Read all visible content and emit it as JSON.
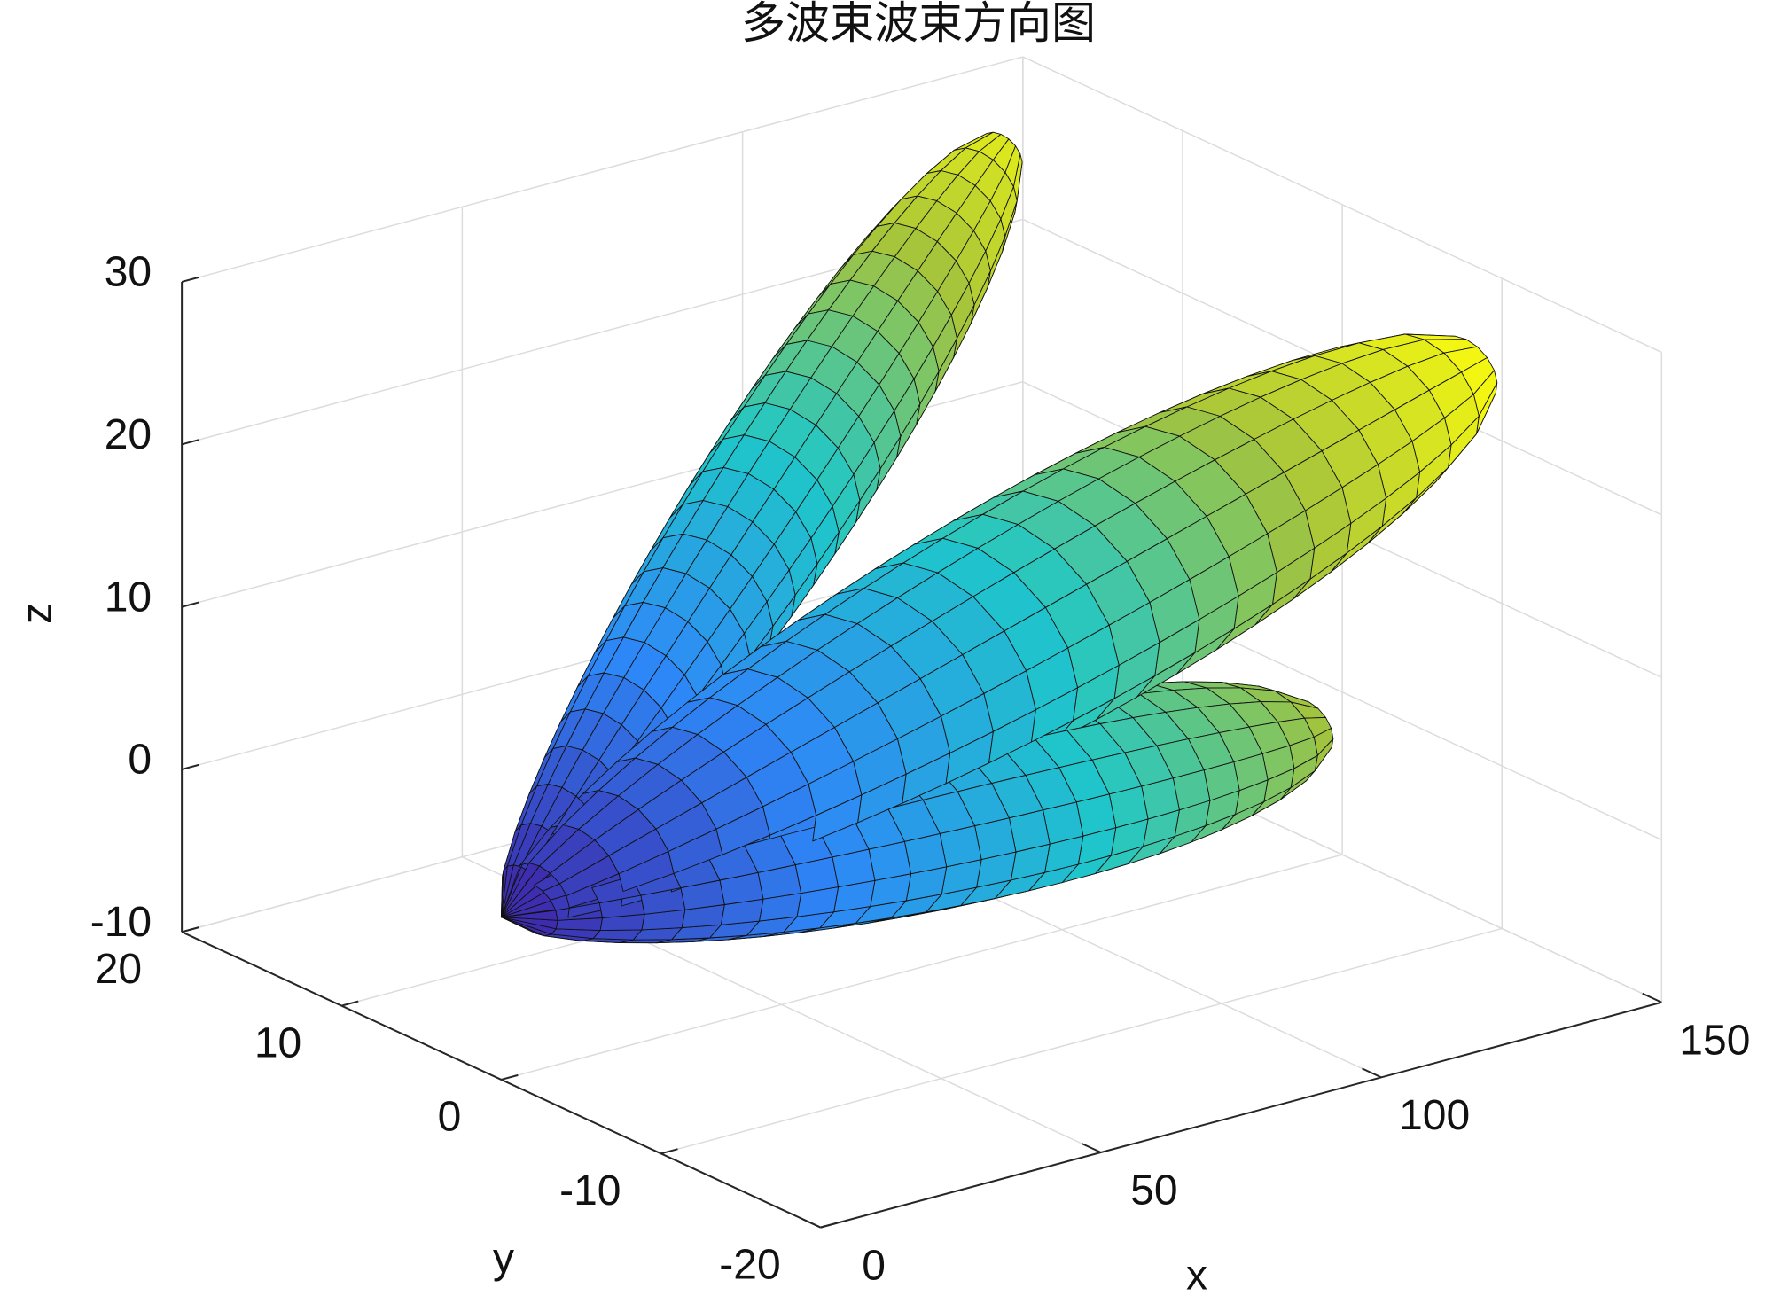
{
  "chart_data": {
    "type": "surface3d",
    "title": "多波束波束方向图",
    "x_label": "x",
    "y_label": "y",
    "z_label": "z",
    "xlim": [
      0,
      150
    ],
    "ylim": [
      -20,
      20
    ],
    "zlim": [
      -10,
      30
    ],
    "xticks": [
      0,
      50,
      100,
      150
    ],
    "yticks": [
      -20,
      -10,
      0,
      10,
      20
    ],
    "zticks": [
      -10,
      0,
      10,
      20,
      30
    ],
    "grid": true,
    "colormap": [
      "#3e26a8",
      "#2e87f7",
      "#1fc7c9",
      "#a6c43b",
      "#f9fb0e"
    ],
    "beams": [
      {
        "tip_x": 132,
        "tip_y": 15,
        "tip_z": 28,
        "width": 4
      },
      {
        "tip_x": 144,
        "tip_y": -10,
        "tip_z": 25,
        "width": 6
      },
      {
        "tip_x": 110,
        "tip_y": -12,
        "tip_z": 7,
        "width": 5
      }
    ]
  }
}
